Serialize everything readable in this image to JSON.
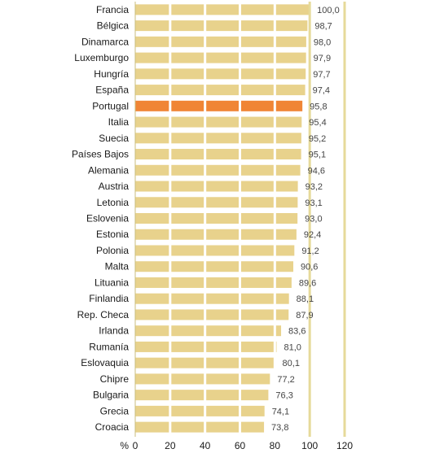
{
  "chart_data": {
    "type": "bar",
    "orientation": "horizontal",
    "categories": [
      "Francia",
      "Bélgica",
      "Dinamarca",
      "Luxemburgo",
      "Hungría",
      "España",
      "Portugal",
      "Italia",
      "Suecia",
      "Países Bajos",
      "Alemania",
      "Austria",
      "Letonia",
      "Eslovenia",
      "Estonia",
      "Polonia",
      "Malta",
      "Lituania",
      "Finlandia",
      "Rep. Checa",
      "Irlanda",
      "Rumanía",
      "Eslovaquia",
      "Chipre",
      "Bulgaria",
      "Grecia",
      "Croacia"
    ],
    "values": [
      100.0,
      98.7,
      98.0,
      97.9,
      97.7,
      97.4,
      95.8,
      95.4,
      95.2,
      95.1,
      94.6,
      93.2,
      93.1,
      93.0,
      92.4,
      91.2,
      90.6,
      89.6,
      88.1,
      87.9,
      83.6,
      81.0,
      80.1,
      77.2,
      76.3,
      74.1,
      73.8
    ],
    "value_labels": [
      "100,0",
      "98,7",
      "98,0",
      "97,9",
      "97,7",
      "97,4",
      "95,8",
      "95,4",
      "95,2",
      "95,1",
      "94,6",
      "93,2",
      "93,1",
      "93,0",
      "92,4",
      "91,2",
      "90,6",
      "89,6",
      "88,1",
      "87,9",
      "83,6",
      "81,0",
      "80,1",
      "77,2",
      "76,3",
      "74,1",
      "73,8"
    ],
    "highlight": "Portugal",
    "x_ticks": [
      "0",
      "20",
      "40",
      "60",
      "80",
      "100",
      "120"
    ],
    "x_tick_values": [
      0,
      20,
      40,
      60,
      80,
      100,
      120
    ],
    "xlim": [
      0,
      120
    ],
    "xlabel": "%",
    "title": "",
    "grid": "vertical",
    "colors": {
      "bar": "#e8d28c",
      "highlight": "#f08535",
      "grid": "#ffffff",
      "reference_line": "#e6da9a",
      "axis": "#c9bd7e"
    }
  }
}
